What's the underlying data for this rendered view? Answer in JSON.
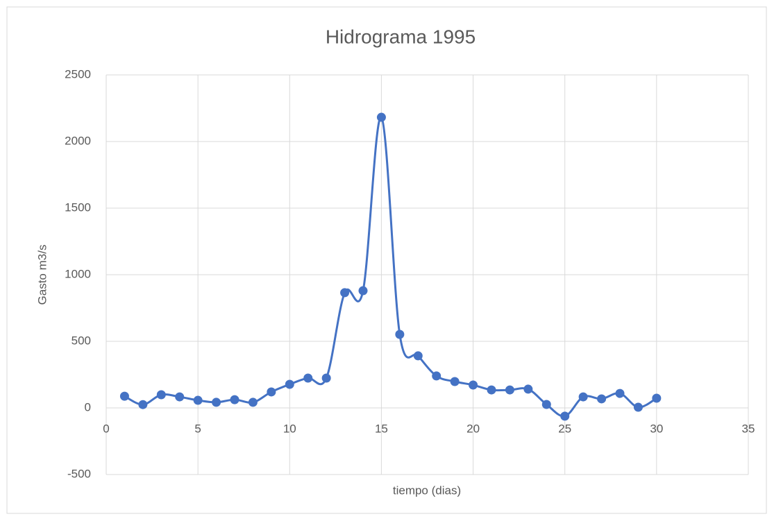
{
  "chart_data": {
    "type": "line",
    "title": "Hidrograma 1995",
    "x_label": "tiempo (dias)",
    "y_label": "Gasto m3/s",
    "smooth": true,
    "markers": true,
    "grid": true,
    "x": [
      1,
      2,
      3,
      4,
      5,
      6,
      7,
      8,
      9,
      10,
      11,
      12,
      13,
      14,
      15,
      16,
      17,
      18,
      19,
      20,
      21,
      22,
      23,
      24,
      25,
      26,
      27,
      28,
      29,
      30
    ],
    "series": [
      {
        "color": "#4472c4",
        "values": [
          88,
          25,
          99,
          83,
          57,
          42,
          62,
          42,
          120,
          177,
          224,
          224,
          865,
          880,
          2182,
          552,
          391,
          240,
          198,
          172,
          135,
          135,
          141,
          26,
          -62,
          83,
          68,
          109,
          5,
          73
        ]
      }
    ],
    "xlim": [
      0,
      35
    ],
    "xticks": [
      0,
      5,
      10,
      15,
      20,
      25,
      30,
      35
    ],
    "ylim": [
      -500,
      2500
    ],
    "yticks": [
      -500,
      0,
      500,
      1000,
      1500,
      2000,
      2500
    ]
  }
}
